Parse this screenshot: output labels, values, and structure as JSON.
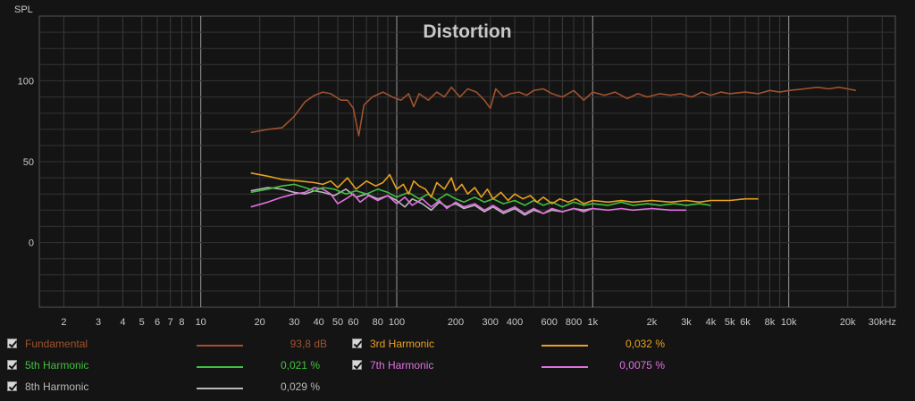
{
  "chart_data": {
    "type": "line",
    "title": "Distortion",
    "ylabel": "SPL",
    "xlabel": "",
    "x_scale": "log",
    "xlim": [
      1.5,
      35000
    ],
    "ylim": [
      -40,
      140
    ],
    "grid": true,
    "y_ticks": [
      "100",
      "50",
      "0"
    ],
    "y_tick_values": [
      100,
      50,
      0
    ],
    "x_ticks": [
      "2",
      "3",
      "4",
      "5",
      "6",
      "7",
      "8",
      "10",
      "20",
      "30",
      "40",
      "50",
      "60",
      "80",
      "100",
      "200",
      "300",
      "400",
      "600",
      "800",
      "1k",
      "2k",
      "3k",
      "4k",
      "5k",
      "6k",
      "8k",
      "10k",
      "20k",
      "30kHz"
    ],
    "x_tick_values": [
      2,
      3,
      4,
      5,
      6,
      7,
      8,
      10,
      20,
      30,
      40,
      50,
      60,
      80,
      100,
      200,
      300,
      400,
      600,
      800,
      1000,
      2000,
      3000,
      4000,
      5000,
      6000,
      8000,
      10000,
      20000,
      30000
    ],
    "series": [
      {
        "name": "Fundamental",
        "color": "#a0522d",
        "value": "93,8 dB",
        "points": [
          [
            18,
            68
          ],
          [
            22,
            70
          ],
          [
            26,
            71
          ],
          [
            30,
            78
          ],
          [
            34,
            87
          ],
          [
            38,
            91
          ],
          [
            42,
            93
          ],
          [
            46,
            92
          ],
          [
            52,
            88
          ],
          [
            56,
            88
          ],
          [
            60,
            83
          ],
          [
            64,
            66
          ],
          [
            68,
            85
          ],
          [
            75,
            90
          ],
          [
            85,
            93
          ],
          [
            95,
            90
          ],
          [
            105,
            88
          ],
          [
            115,
            92
          ],
          [
            122,
            84
          ],
          [
            130,
            92
          ],
          [
            145,
            88
          ],
          [
            160,
            93
          ],
          [
            175,
            90
          ],
          [
            190,
            96
          ],
          [
            210,
            90
          ],
          [
            230,
            95
          ],
          [
            255,
            93
          ],
          [
            280,
            88
          ],
          [
            300,
            83
          ],
          [
            320,
            95
          ],
          [
            350,
            90
          ],
          [
            380,
            92
          ],
          [
            420,
            93
          ],
          [
            460,
            91
          ],
          [
            500,
            94
          ],
          [
            560,
            95
          ],
          [
            620,
            92
          ],
          [
            700,
            90
          ],
          [
            800,
            94
          ],
          [
            900,
            88
          ],
          [
            1000,
            93
          ],
          [
            1150,
            91
          ],
          [
            1300,
            93
          ],
          [
            1500,
            89
          ],
          [
            1700,
            92
          ],
          [
            1900,
            90
          ],
          [
            2200,
            92
          ],
          [
            2500,
            91
          ],
          [
            2800,
            92
          ],
          [
            3200,
            90
          ],
          [
            3600,
            93
          ],
          [
            4000,
            91
          ],
          [
            4500,
            93
          ],
          [
            5000,
            92
          ],
          [
            6000,
            93
          ],
          [
            7000,
            92
          ],
          [
            8000,
            94
          ],
          [
            9000,
            93
          ],
          [
            10000,
            94
          ],
          [
            12000,
            95
          ],
          [
            14000,
            96
          ],
          [
            16000,
            95
          ],
          [
            18000,
            96
          ],
          [
            20000,
            95
          ],
          [
            22000,
            94
          ]
        ]
      },
      {
        "name": "3rd Harmonic",
        "color": "#e8a020",
        "value": "0,032 %",
        "points": [
          [
            18,
            43
          ],
          [
            22,
            41
          ],
          [
            26,
            39
          ],
          [
            32,
            38
          ],
          [
            38,
            37
          ],
          [
            42,
            36
          ],
          [
            46,
            38
          ],
          [
            50,
            34
          ],
          [
            56,
            40
          ],
          [
            62,
            33
          ],
          [
            70,
            38
          ],
          [
            78,
            35
          ],
          [
            85,
            37
          ],
          [
            92,
            42
          ],
          [
            100,
            33
          ],
          [
            108,
            36
          ],
          [
            115,
            30
          ],
          [
            122,
            38
          ],
          [
            130,
            35
          ],
          [
            140,
            33
          ],
          [
            150,
            28
          ],
          [
            160,
            37
          ],
          [
            175,
            33
          ],
          [
            190,
            40
          ],
          [
            200,
            32
          ],
          [
            215,
            36
          ],
          [
            230,
            30
          ],
          [
            250,
            34
          ],
          [
            270,
            28
          ],
          [
            290,
            33
          ],
          [
            310,
            27
          ],
          [
            340,
            31
          ],
          [
            370,
            26
          ],
          [
            400,
            30
          ],
          [
            440,
            27
          ],
          [
            480,
            29
          ],
          [
            520,
            25
          ],
          [
            560,
            28
          ],
          [
            620,
            24
          ],
          [
            680,
            27
          ],
          [
            750,
            25
          ],
          [
            820,
            27
          ],
          [
            900,
            24
          ],
          [
            1000,
            26
          ],
          [
            1200,
            25
          ],
          [
            1400,
            26
          ],
          [
            1600,
            25
          ],
          [
            2000,
            26
          ],
          [
            2500,
            25
          ],
          [
            3000,
            26
          ],
          [
            3500,
            25
          ],
          [
            4000,
            26
          ],
          [
            5000,
            26
          ],
          [
            6000,
            27
          ],
          [
            7000,
            27
          ]
        ]
      },
      {
        "name": "5th Harmonic",
        "color": "#40c040",
        "value": "0,021 %",
        "points": [
          [
            18,
            31
          ],
          [
            22,
            33
          ],
          [
            26,
            35
          ],
          [
            30,
            36
          ],
          [
            34,
            34
          ],
          [
            38,
            32
          ],
          [
            42,
            34
          ],
          [
            48,
            33
          ],
          [
            55,
            30
          ],
          [
            62,
            32
          ],
          [
            70,
            30
          ],
          [
            80,
            33
          ],
          [
            90,
            31
          ],
          [
            100,
            28
          ],
          [
            115,
            31
          ],
          [
            130,
            27
          ],
          [
            145,
            30
          ],
          [
            160,
            26
          ],
          [
            180,
            30
          ],
          [
            200,
            27
          ],
          [
            220,
            25
          ],
          [
            250,
            28
          ],
          [
            280,
            25
          ],
          [
            310,
            27
          ],
          [
            350,
            24
          ],
          [
            400,
            26
          ],
          [
            450,
            23
          ],
          [
            500,
            26
          ],
          [
            560,
            23
          ],
          [
            620,
            25
          ],
          [
            700,
            22
          ],
          [
            800,
            25
          ],
          [
            900,
            23
          ],
          [
            1000,
            24
          ],
          [
            1200,
            23
          ],
          [
            1400,
            25
          ],
          [
            1600,
            23
          ],
          [
            1900,
            24
          ],
          [
            2200,
            23
          ],
          [
            2600,
            24
          ],
          [
            3000,
            23
          ],
          [
            3500,
            24
          ],
          [
            4000,
            23
          ]
        ]
      },
      {
        "name": "7th Harmonic",
        "color": "#e070e0",
        "value": "0,0075 %",
        "points": [
          [
            18,
            22
          ],
          [
            22,
            25
          ],
          [
            26,
            28
          ],
          [
            30,
            30
          ],
          [
            34,
            31
          ],
          [
            38,
            34
          ],
          [
            42,
            33
          ],
          [
            46,
            30
          ],
          [
            50,
            24
          ],
          [
            55,
            27
          ],
          [
            60,
            30
          ],
          [
            65,
            25
          ],
          [
            72,
            29
          ],
          [
            80,
            26
          ],
          [
            90,
            29
          ],
          [
            100,
            24
          ],
          [
            110,
            28
          ],
          [
            120,
            23
          ],
          [
            135,
            27
          ],
          [
            150,
            22
          ],
          [
            165,
            26
          ],
          [
            180,
            21
          ],
          [
            200,
            25
          ],
          [
            220,
            22
          ],
          [
            250,
            24
          ],
          [
            280,
            20
          ],
          [
            310,
            23
          ],
          [
            350,
            19
          ],
          [
            400,
            22
          ],
          [
            450,
            18
          ],
          [
            500,
            21
          ],
          [
            560,
            18
          ],
          [
            620,
            21
          ],
          [
            700,
            19
          ],
          [
            800,
            21
          ],
          [
            900,
            19
          ],
          [
            1000,
            21
          ],
          [
            1200,
            20
          ],
          [
            1400,
            21
          ],
          [
            1600,
            20
          ],
          [
            2000,
            21
          ],
          [
            2500,
            20
          ],
          [
            3000,
            20
          ]
        ]
      },
      {
        "name": "8th Harmonic",
        "color": "#b8b8b8",
        "value": "0,029 %",
        "points": [
          [
            18,
            32
          ],
          [
            22,
            34
          ],
          [
            26,
            33
          ],
          [
            30,
            31
          ],
          [
            34,
            30
          ],
          [
            38,
            32
          ],
          [
            42,
            31
          ],
          [
            48,
            29
          ],
          [
            55,
            33
          ],
          [
            62,
            28
          ],
          [
            70,
            30
          ],
          [
            80,
            27
          ],
          [
            90,
            29
          ],
          [
            100,
            26
          ],
          [
            110,
            22
          ],
          [
            120,
            27
          ],
          [
            135,
            24
          ],
          [
            150,
            20
          ],
          [
            165,
            25
          ],
          [
            180,
            22
          ],
          [
            200,
            24
          ],
          [
            220,
            21
          ],
          [
            250,
            23
          ],
          [
            280,
            19
          ],
          [
            310,
            22
          ],
          [
            350,
            18
          ],
          [
            400,
            21
          ],
          [
            450,
            17
          ],
          [
            500,
            20
          ],
          [
            560,
            18
          ],
          [
            620,
            20
          ],
          [
            700,
            19
          ],
          [
            800,
            21
          ],
          [
            900,
            20
          ],
          [
            1000,
            21
          ]
        ]
      }
    ]
  }
}
